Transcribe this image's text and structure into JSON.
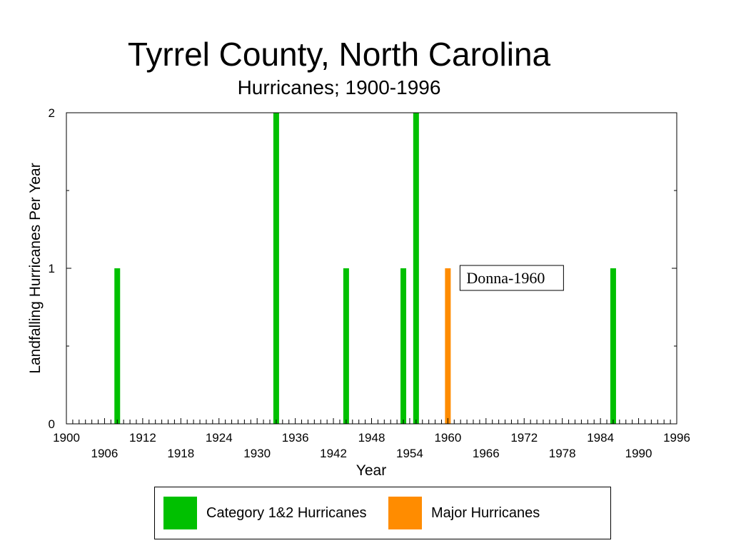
{
  "chart_data": {
    "type": "bar",
    "title": "Tyrrel County, North Carolina",
    "subtitle": "Hurricanes;  1900-1996",
    "xlabel": "Year",
    "ylabel": "Landfalling Hurricanes Per Year",
    "xlim": [
      1900,
      1996
    ],
    "ylim": [
      0,
      2
    ],
    "x_ticks_top_row": [
      "1900",
      "1912",
      "1924",
      "1936",
      "1948",
      "1960",
      "1972",
      "1984",
      "1996"
    ],
    "x_ticks_bottom_row": [
      "1906",
      "1918",
      "1930",
      "1942",
      "1954",
      "1966",
      "1978",
      "1990"
    ],
    "y_ticks": [
      "0",
      "1",
      "2"
    ],
    "grid": false,
    "legend_position": "bottom",
    "series": [
      {
        "name": "Category 1&2 Hurricanes",
        "color": "#00c000",
        "points": [
          {
            "x": 1908,
            "y": 1
          },
          {
            "x": 1933,
            "y": 2
          },
          {
            "x": 1944,
            "y": 1
          },
          {
            "x": 1953,
            "y": 1
          },
          {
            "x": 1955,
            "y": 2
          },
          {
            "x": 1986,
            "y": 1
          }
        ]
      },
      {
        "name": "Major Hurricanes",
        "color": "#ff8c00",
        "points": [
          {
            "x": 1960,
            "y": 1
          }
        ]
      }
    ],
    "annotations": [
      {
        "text": "Donna-1960",
        "x": 1960,
        "y": 1
      }
    ]
  }
}
